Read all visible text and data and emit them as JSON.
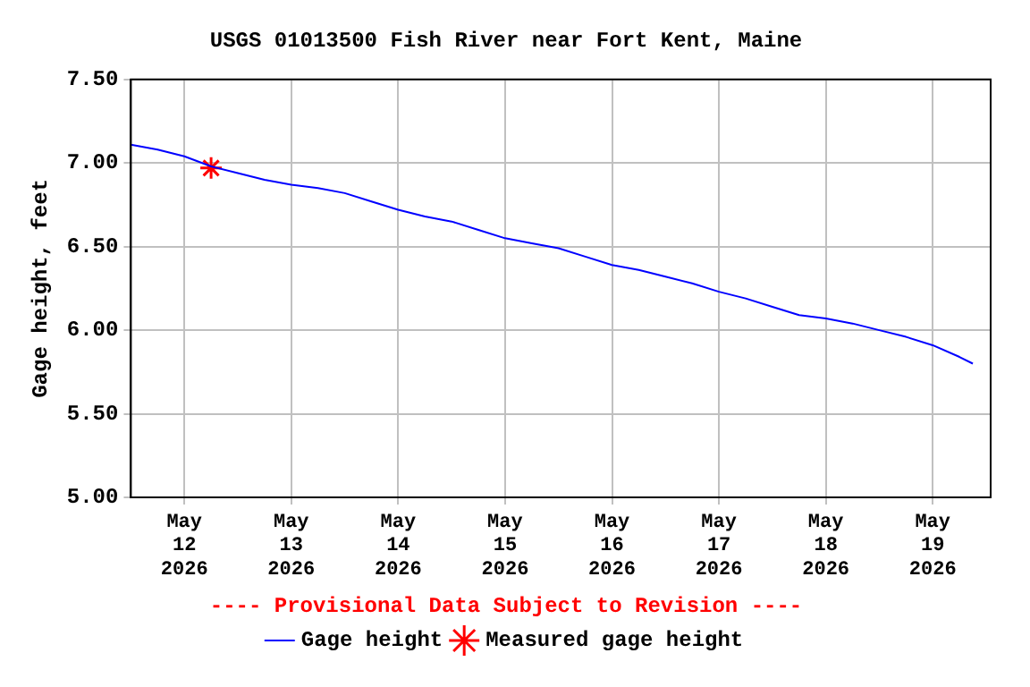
{
  "chart_data": {
    "type": "line",
    "title": "USGS 01013500 Fish River near Fort Kent, Maine",
    "ylabel": "Gage height, feet",
    "annotations": [
      "---- Provisional Data Subject to Revision ----"
    ],
    "x": [
      "2026-05-11T12:00",
      "2026-05-11T18:00",
      "2026-05-12T00:00",
      "2026-05-12T06:00",
      "2026-05-12T12:00",
      "2026-05-12T18:00",
      "2026-05-13T00:00",
      "2026-05-13T06:00",
      "2026-05-13T12:00",
      "2026-05-13T18:00",
      "2026-05-14T00:00",
      "2026-05-14T06:00",
      "2026-05-14T12:00",
      "2026-05-14T18:00",
      "2026-05-15T00:00",
      "2026-05-15T06:00",
      "2026-05-15T12:00",
      "2026-05-15T18:00",
      "2026-05-16T00:00",
      "2026-05-16T06:00",
      "2026-05-16T12:00",
      "2026-05-16T18:00",
      "2026-05-17T00:00",
      "2026-05-17T06:00",
      "2026-05-17T12:00",
      "2026-05-17T18:00",
      "2026-05-18T00:00",
      "2026-05-18T06:00",
      "2026-05-18T12:00",
      "2026-05-18T18:00",
      "2026-05-19T00:00",
      "2026-05-19T06:00",
      "2026-05-19T09:00"
    ],
    "series": [
      {
        "name": "Gage height",
        "color": "#0000ff",
        "values": [
          7.11,
          7.08,
          7.04,
          6.98,
          6.94,
          6.9,
          6.87,
          6.85,
          6.82,
          6.77,
          6.72,
          6.68,
          6.65,
          6.6,
          6.55,
          6.52,
          6.49,
          6.44,
          6.39,
          6.36,
          6.32,
          6.28,
          6.23,
          6.19,
          6.14,
          6.09,
          6.07,
          6.04,
          6.0,
          5.96,
          5.91,
          5.84,
          5.8
        ]
      },
      {
        "name": "Measured gage height",
        "type": "scatter",
        "marker": "cross",
        "color": "#ff0000",
        "x": [
          "2026-05-12T06:00"
        ],
        "values": [
          6.97
        ]
      }
    ],
    "xlim": [
      "2026-05-11T12:00",
      "2026-05-19T13:00"
    ],
    "xticks": [
      {
        "value": "2026-05-12",
        "label": "May 12 2026"
      },
      {
        "value": "2026-05-13",
        "label": "May 13 2026"
      },
      {
        "value": "2026-05-14",
        "label": "May 14 2026"
      },
      {
        "value": "2026-05-15",
        "label": "May 15 2026"
      },
      {
        "value": "2026-05-16",
        "label": "May 16 2026"
      },
      {
        "value": "2026-05-17",
        "label": "May 17 2026"
      },
      {
        "value": "2026-05-18",
        "label": "May 18 2026"
      },
      {
        "value": "2026-05-19",
        "label": "May 19 2026"
      }
    ],
    "ylim": [
      5,
      7.5
    ],
    "yticks": [
      {
        "value": 5,
        "label": "5.00"
      },
      {
        "value": 5.5,
        "label": "5.50"
      },
      {
        "value": 6,
        "label": "6.00"
      },
      {
        "value": 6.5,
        "label": "6.50"
      },
      {
        "value": 7,
        "label": "7.00"
      },
      {
        "value": 7.5,
        "label": "7.50"
      }
    ],
    "grid": true,
    "legend": "bottom",
    "marker": "none",
    "line_style": "solid"
  }
}
